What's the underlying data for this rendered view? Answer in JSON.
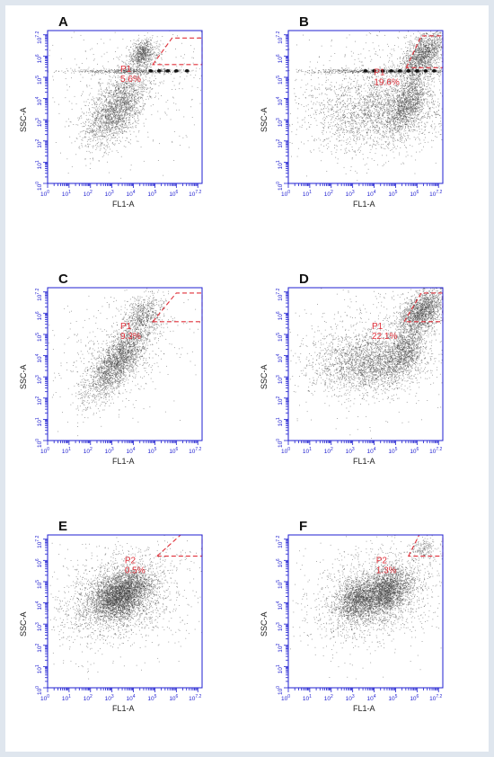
{
  "chart_data": [
    {
      "panel": "A",
      "type": "scatter",
      "xlabel": "FL1-A",
      "ylabel": "SSC-A",
      "xlim": [
        0,
        7.2
      ],
      "ylim": [
        0,
        7.2
      ],
      "log_scale": true,
      "tick_labels": [
        "10^0",
        "10^1",
        "10^2",
        "10^3",
        "10^4",
        "10^5",
        "10^6",
        "10^7.2"
      ],
      "gate": {
        "name": "P1",
        "percent": "5.6%",
        "polygon": [
          [
            4.9,
            5.6
          ],
          [
            5.8,
            6.85
          ],
          [
            7.2,
            6.85
          ],
          [
            7.2,
            5.6
          ]
        ]
      },
      "populations": [
        {
          "cx": 3.2,
          "cy": 3.5,
          "sx": 0.7,
          "sy": 0.85,
          "rho": 0.55,
          "n": 2000
        },
        {
          "cx": 4.4,
          "cy": 6.1,
          "sx": 0.35,
          "sy": 0.35,
          "rho": 0.3,
          "n": 700
        },
        {
          "cx": 4.0,
          "cy": 5.3,
          "sx": 1.6,
          "sy": 0.05,
          "rho": 0,
          "n": 500
        },
        {
          "cx": 3.8,
          "cy": 4.5,
          "sx": 2.0,
          "sy": 1.6,
          "rho": 0.2,
          "n": 500
        }
      ],
      "stripe_dots": [
        4.8,
        5.2,
        5.6,
        6.0,
        6.5
      ]
    },
    {
      "panel": "B",
      "type": "scatter",
      "xlabel": "FL1-A",
      "ylabel": "SSC-A",
      "xlim": [
        0,
        7.2
      ],
      "ylim": [
        0,
        7.2
      ],
      "log_scale": true,
      "tick_labels": [
        "10^0",
        "10^1",
        "10^2",
        "10^3",
        "10^4",
        "10^5",
        "10^6",
        "10^7.2"
      ],
      "gate": {
        "name": "P1",
        "percent": "19.6%",
        "polygon": [
          [
            5.5,
            5.45
          ],
          [
            6.2,
            6.95
          ],
          [
            7.2,
            6.95
          ],
          [
            7.2,
            5.45
          ]
        ]
      },
      "populations": [
        {
          "cx": 4.3,
          "cy": 3.4,
          "sx": 1.6,
          "sy": 0.9,
          "rho": 0.15,
          "n": 2200
        },
        {
          "cx": 5.6,
          "cy": 3.8,
          "sx": 0.45,
          "sy": 0.7,
          "rho": 0.6,
          "n": 1000
        },
        {
          "cx": 6.3,
          "cy": 6.1,
          "sx": 0.55,
          "sy": 0.6,
          "rho": 0.6,
          "n": 1500
        },
        {
          "cx": 4.5,
          "cy": 5.3,
          "sx": 1.8,
          "sy": 0.05,
          "rho": 0,
          "n": 600
        },
        {
          "cx": 4.0,
          "cy": 4.5,
          "sx": 2.2,
          "sy": 1.6,
          "rho": 0.2,
          "n": 600
        }
      ],
      "stripe_dots": [
        3.6,
        4.0,
        4.4,
        4.8,
        5.2,
        5.6,
        6.0,
        6.4,
        6.8
      ]
    },
    {
      "panel": "C",
      "type": "scatter",
      "xlabel": "FL1-A",
      "ylabel": "SSC-A",
      "xlim": [
        0,
        7.2
      ],
      "ylim": [
        0,
        7.2
      ],
      "log_scale": true,
      "tick_labels": [
        "10^0",
        "10^1",
        "10^2",
        "10^3",
        "10^4",
        "10^5",
        "10^6",
        "10^7.2"
      ],
      "gate": {
        "name": "P1",
        "percent": "9.3%",
        "polygon": [
          [
            4.9,
            5.6
          ],
          [
            6.0,
            6.95
          ],
          [
            7.2,
            6.95
          ],
          [
            7.2,
            5.6
          ]
        ]
      },
      "populations": [
        {
          "cx": 3.3,
          "cy": 3.8,
          "sx": 0.75,
          "sy": 0.95,
          "rho": 0.75,
          "n": 2400
        },
        {
          "cx": 4.4,
          "cy": 5.9,
          "sx": 0.45,
          "sy": 0.5,
          "rho": 0.3,
          "n": 500
        },
        {
          "cx": 3.5,
          "cy": 4.3,
          "sx": 1.8,
          "sy": 1.6,
          "rho": 0.3,
          "n": 500
        }
      ],
      "stripe_dots": []
    },
    {
      "panel": "D",
      "type": "scatter",
      "xlabel": "FL1-A",
      "ylabel": "SSC-A",
      "xlim": [
        0,
        7.2
      ],
      "ylim": [
        0,
        7.2
      ],
      "log_scale": true,
      "tick_labels": [
        "10^0",
        "10^1",
        "10^2",
        "10^3",
        "10^4",
        "10^5",
        "10^6",
        "10^7.2"
      ],
      "gate": {
        "name": "P1",
        "percent": "22.1%",
        "polygon": [
          [
            5.4,
            5.6
          ],
          [
            6.2,
            6.95
          ],
          [
            7.2,
            6.95
          ],
          [
            7.2,
            5.6
          ]
        ]
      },
      "populations": [
        {
          "cx": 3.8,
          "cy": 3.7,
          "sx": 1.3,
          "sy": 0.7,
          "rho": 0.2,
          "n": 2200
        },
        {
          "cx": 5.4,
          "cy": 4.2,
          "sx": 0.5,
          "sy": 0.65,
          "rho": 0.5,
          "n": 900
        },
        {
          "cx": 6.2,
          "cy": 6.1,
          "sx": 0.55,
          "sy": 0.55,
          "rho": 0.5,
          "n": 1600
        },
        {
          "cx": 4.0,
          "cy": 4.4,
          "sx": 2.2,
          "sy": 1.6,
          "rho": 0.2,
          "n": 700
        }
      ],
      "stripe_dots": []
    },
    {
      "panel": "E",
      "type": "scatter",
      "xlabel": "FL1-A",
      "ylabel": "SSC-A",
      "xlim": [
        0,
        7.2
      ],
      "ylim": [
        0,
        7.2
      ],
      "log_scale": true,
      "tick_labels": [
        "10^0",
        "10^1",
        "10^2",
        "10^3",
        "10^4",
        "10^5",
        "10^6",
        "10^7.2"
      ],
      "gate": {
        "name": "P2",
        "percent": "0.5%",
        "polygon": [
          [
            5.1,
            6.2
          ],
          [
            6.2,
            7.2
          ],
          [
            7.2,
            7.2
          ],
          [
            7.2,
            6.2
          ]
        ]
      },
      "populations": [
        {
          "cx": 3.4,
          "cy": 4.4,
          "sx": 0.65,
          "sy": 0.55,
          "rho": 0.35,
          "n": 3000
        },
        {
          "cx": 3.3,
          "cy": 4.3,
          "sx": 1.3,
          "sy": 1.0,
          "rho": 0.3,
          "n": 1800
        },
        {
          "cx": 3.5,
          "cy": 4.2,
          "sx": 2.0,
          "sy": 1.7,
          "rho": 0.2,
          "n": 500
        }
      ],
      "stripe_dots": []
    },
    {
      "panel": "F",
      "type": "scatter",
      "xlabel": "FL1-A",
      "ylabel": "SSC-A",
      "xlim": [
        0,
        7.2
      ],
      "ylim": [
        0,
        7.2
      ],
      "log_scale": true,
      "tick_labels": [
        "10^0",
        "10^1",
        "10^2",
        "10^3",
        "10^4",
        "10^5",
        "10^6",
        "10^7.2"
      ],
      "gate": {
        "name": "P2",
        "percent": "1.3%",
        "polygon": [
          [
            5.6,
            6.2
          ],
          [
            6.1,
            7.2
          ],
          [
            7.2,
            7.2
          ],
          [
            7.2,
            6.2
          ]
        ]
      },
      "populations": [
        {
          "cx": 4.5,
          "cy": 4.5,
          "sx": 0.6,
          "sy": 0.55,
          "rho": 0.4,
          "n": 2200
        },
        {
          "cx": 3.1,
          "cy": 4.1,
          "sx": 0.4,
          "sy": 0.5,
          "rho": 0.2,
          "n": 1000
        },
        {
          "cx": 4.0,
          "cy": 4.4,
          "sx": 1.4,
          "sy": 1.0,
          "rho": 0.3,
          "n": 1500
        },
        {
          "cx": 4.0,
          "cy": 4.3,
          "sx": 2.0,
          "sy": 1.7,
          "rho": 0.2,
          "n": 500
        },
        {
          "cx": 6.3,
          "cy": 6.6,
          "sx": 0.3,
          "sy": 0.25,
          "rho": 0.3,
          "n": 150
        }
      ],
      "stripe_dots": []
    }
  ],
  "colors": {
    "axis": "#1f1fd0",
    "gate": "#e0303a",
    "dots": "#404040",
    "panel_label": "#111111",
    "figure_border": "#dfe6ee"
  }
}
